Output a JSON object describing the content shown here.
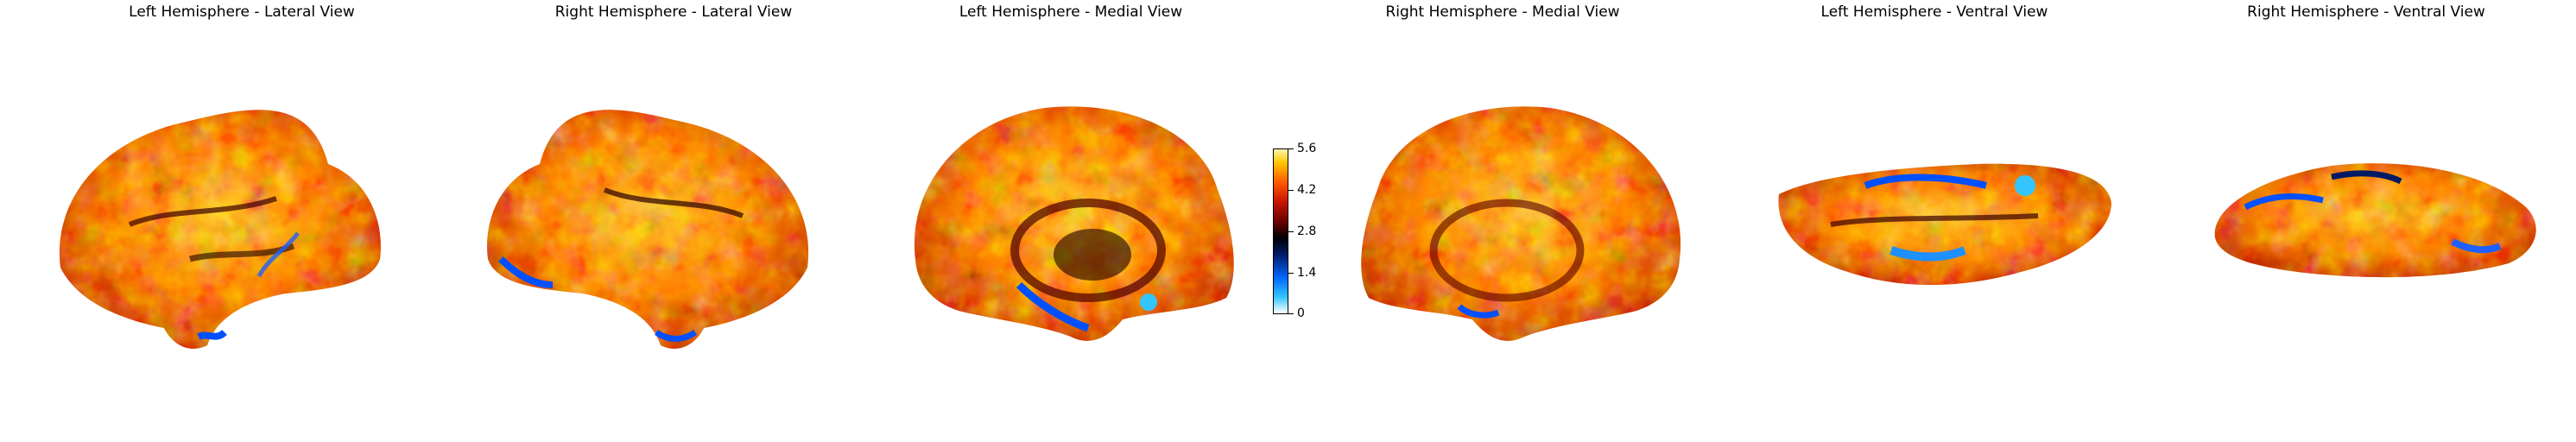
{
  "panels": [
    {
      "title": "Left Hemisphere - Lateral View"
    },
    {
      "title": "Right Hemisphere - Lateral View"
    },
    {
      "title": "Left Hemisphere - Medial View"
    },
    {
      "title": "Right Hemisphere - Medial View"
    },
    {
      "title": "Left Hemisphere - Ventral View"
    },
    {
      "title": "Right Hemisphere - Ventral View"
    }
  ],
  "colorbar": {
    "ticks": [
      "0",
      "1.4",
      "2.8",
      "4.2",
      "5.6"
    ],
    "range": [
      0,
      5.6
    ],
    "colormap": [
      "#ffffff",
      "#33c5ff",
      "#0066ff",
      "#001a66",
      "#000000",
      "#6b0000",
      "#c81400",
      "#ff5a00",
      "#ffc800",
      "#fff6b0"
    ]
  },
  "colors": {
    "background": "#ffffff",
    "outline": "#000000"
  }
}
